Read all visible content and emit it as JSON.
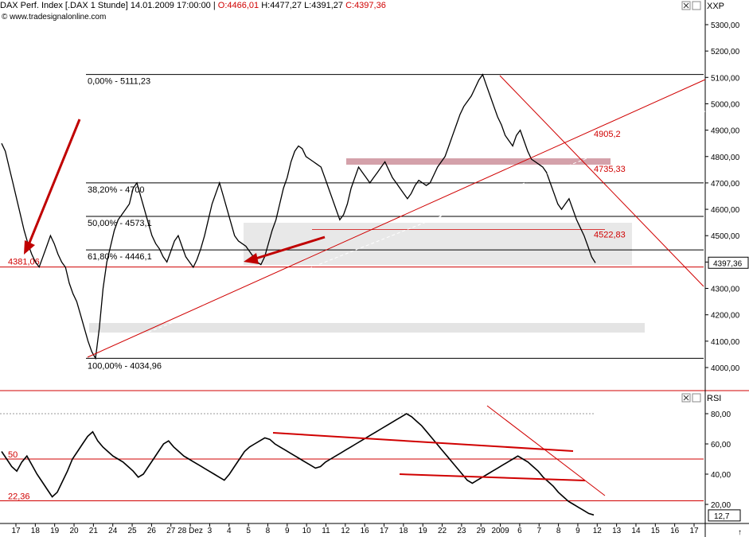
{
  "header": {
    "instrument": "DAX Perf. Index [.DAX  1 Stunde]",
    "datetime": "14.01.2009 17:00:00",
    "open": "O:4466,01",
    "high": "H:4477,27",
    "low": "L:4391,27",
    "close": "C:4397,36",
    "watermark": "© www.tradesignalonline.com"
  },
  "toolbar": {
    "close_icon": "close-icon",
    "maximize_icon": "maximize-icon",
    "exchange": "XXP",
    "rsi_label": "RSI"
  },
  "colors": {
    "red": "#d00000",
    "black": "#000000",
    "band": "#e6e6e6",
    "band_strong": "#d8d8d8",
    "pink_zone": "#c98a95"
  },
  "chart_data": [
    {
      "type": "line",
      "title": "DAX Perf. Index [.DAX  1 Stunde]",
      "ylim": [
        3900,
        5380
      ],
      "y_ticks": [
        "5300,00",
        "5200,00",
        "5100,00",
        "5000,00",
        "4900,00",
        "4800,00",
        "4700,00",
        "4600,00",
        "4500,00",
        "4400,00",
        "4300,00",
        "4200,00",
        "4100,00",
        "4000,00"
      ],
      "last_value_label": "4397,36",
      "series": [
        {
          "values": [
            4850,
            4820,
            4760,
            4700,
            4640,
            4580,
            4520,
            4470,
            4430,
            4400,
            4381,
            4420,
            4460,
            4500,
            4470,
            4430,
            4400,
            4380,
            4320,
            4280,
            4250,
            4200,
            4150,
            4100,
            4060,
            4035,
            4150,
            4300,
            4400,
            4460,
            4520,
            4560,
            4580,
            4600,
            4620,
            4680,
            4700,
            4650,
            4600,
            4550,
            4500,
            4470,
            4450,
            4420,
            4400,
            4440,
            4480,
            4500,
            4460,
            4420,
            4400,
            4380,
            4410,
            4450,
            4500,
            4560,
            4620,
            4660,
            4700,
            4650,
            4600,
            4550,
            4500,
            4480,
            4470,
            4460,
            4440,
            4420,
            4400,
            4390,
            4420,
            4470,
            4520,
            4560,
            4620,
            4680,
            4720,
            4780,
            4820,
            4840,
            4830,
            4800,
            4790,
            4780,
            4770,
            4760,
            4720,
            4680,
            4640,
            4600,
            4560,
            4580,
            4620,
            4680,
            4720,
            4760,
            4740,
            4720,
            4700,
            4720,
            4740,
            4760,
            4780,
            4750,
            4720,
            4700,
            4680,
            4660,
            4640,
            4660,
            4690,
            4710,
            4700,
            4690,
            4700,
            4730,
            4760,
            4780,
            4800,
            4840,
            4880,
            4920,
            4960,
            4990,
            5010,
            5030,
            5060,
            5090,
            5111,
            5070,
            5030,
            4990,
            4950,
            4920,
            4880,
            4860,
            4840,
            4880,
            4900,
            4860,
            4820,
            4790,
            4780,
            4770,
            4760,
            4740,
            4700,
            4660,
            4620,
            4600,
            4620,
            4640,
            4600,
            4560,
            4530,
            4500,
            4460,
            4420,
            4397
          ]
        }
      ],
      "fibonacci": [
        {
          "label": "0,00% - 5111,23",
          "value": 5111.23
        },
        {
          "label": "38,20% - 4700",
          "value": 4700
        },
        {
          "label": "50,00% - 4573,1",
          "value": 4573.1
        },
        {
          "label": "61,80% - 4446,1",
          "value": 4446.1
        },
        {
          "label": "100,00% - 4034,96",
          "value": 4034.96
        }
      ],
      "annotations": [
        "4381,06",
        "4905,2",
        "4735,33",
        "4522,83"
      ],
      "horizontal_lines": [
        4381.06,
        4522.83
      ],
      "x_tick_labels": [
        "17",
        "18",
        "19",
        "20",
        "21",
        "24",
        "25",
        "26",
        "27",
        "28 Dez",
        "3",
        "4",
        "5",
        "8",
        "9",
        "10",
        "11",
        "12",
        "16",
        "17",
        "18",
        "19",
        "22",
        "23",
        "29",
        "2009",
        "6",
        "7",
        "8",
        "9",
        "12",
        "13",
        "14",
        "15",
        "16",
        "17"
      ]
    },
    {
      "type": "line",
      "title": "RSI",
      "ylim": [
        10,
        90
      ],
      "y_ticks": [
        "80,00",
        "60,00",
        "40,00",
        "20,00"
      ],
      "levels": [
        {
          "label": "50",
          "value": 50
        },
        {
          "label": "22,36",
          "value": 22.36
        }
      ],
      "last_value_label": "12,7",
      "series": [
        {
          "values": [
            55,
            50,
            45,
            42,
            48,
            52,
            46,
            40,
            35,
            30,
            25,
            28,
            35,
            42,
            50,
            55,
            60,
            65,
            68,
            62,
            58,
            55,
            52,
            50,
            48,
            45,
            42,
            38,
            40,
            45,
            50,
            55,
            60,
            62,
            58,
            55,
            52,
            50,
            48,
            46,
            44,
            42,
            40,
            38,
            36,
            40,
            45,
            50,
            55,
            58,
            60,
            62,
            64,
            63,
            60,
            58,
            56,
            54,
            52,
            50,
            48,
            46,
            44,
            45,
            48,
            50,
            52,
            54,
            56,
            58,
            60,
            62,
            64,
            66,
            68,
            70,
            72,
            74,
            76,
            78,
            80,
            78,
            75,
            72,
            68,
            64,
            60,
            56,
            52,
            48,
            44,
            40,
            36,
            34,
            36,
            38,
            40,
            42,
            44,
            46,
            48,
            50,
            52,
            50,
            48,
            45,
            42,
            38,
            35,
            32,
            28,
            25,
            22,
            20,
            18,
            16,
            14,
            13
          ]
        }
      ]
    }
  ]
}
